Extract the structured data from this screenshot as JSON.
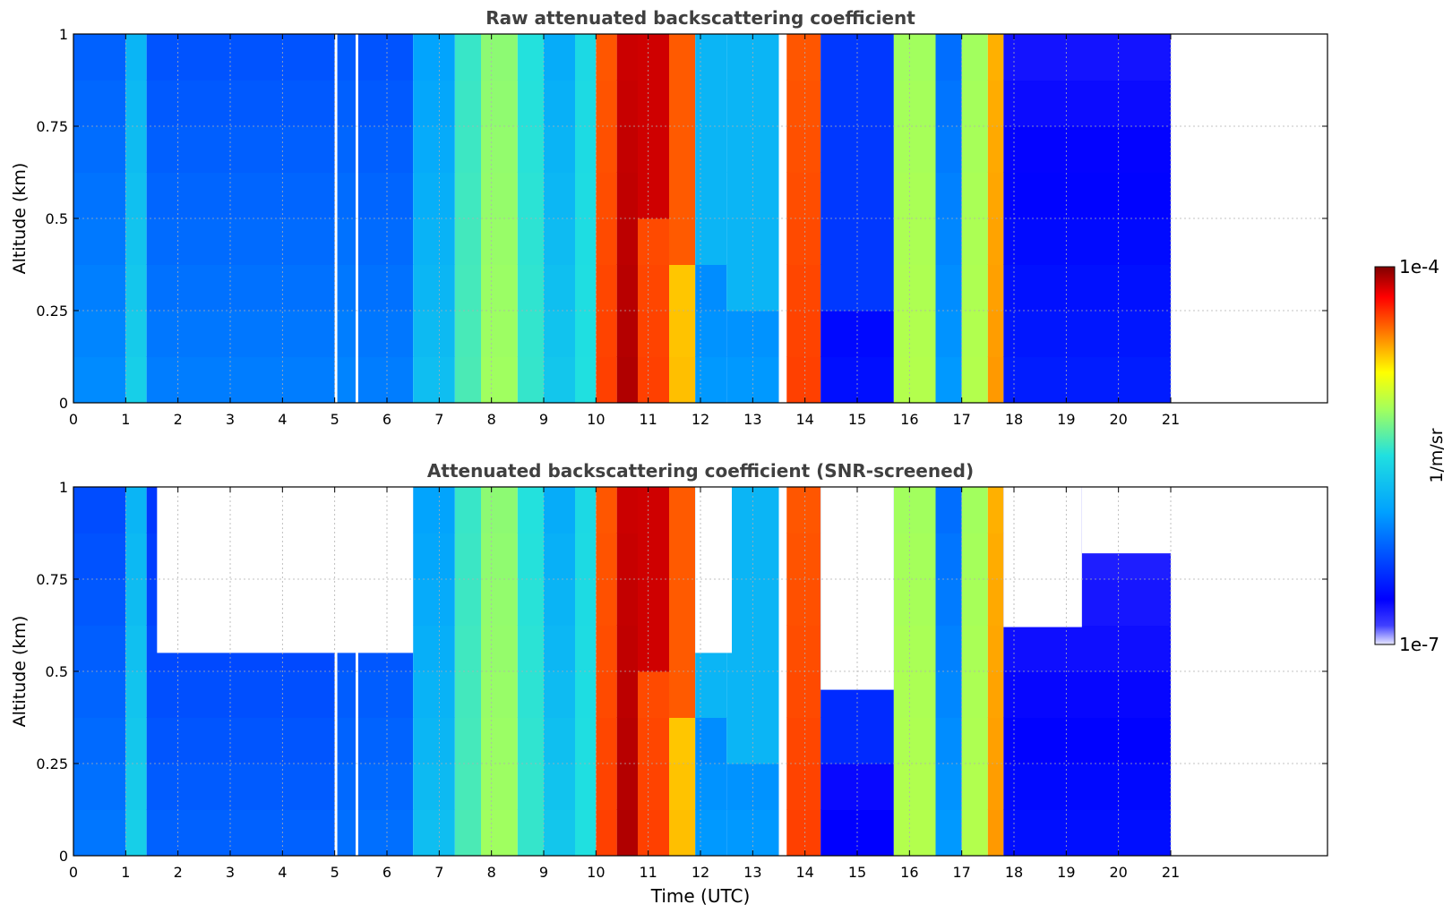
{
  "chart_data": [
    {
      "type": "heatmap",
      "title": "Raw attenuated backscattering coefficient",
      "xlabel": "",
      "ylabel": "Altitude (km)",
      "xlim": [
        0,
        24
      ],
      "ylim": [
        0,
        1
      ],
      "xticks": [
        "0",
        "1",
        "2",
        "3",
        "4",
        "5",
        "6",
        "7",
        "8",
        "9",
        "10",
        "11",
        "12",
        "13",
        "14",
        "15",
        "16",
        "17",
        "18",
        "19",
        "20",
        "21"
      ],
      "yticks": [
        "0",
        "0.25",
        "0.5",
        "0.75",
        "1"
      ],
      "data_extent_hours": [
        0,
        21
      ],
      "grid": true,
      "screened": false,
      "bands": [
        {
          "x": [
            0.0,
            1.0
          ],
          "level": 0.28,
          "cloud": 0.0
        },
        {
          "x": [
            1.0,
            1.4
          ],
          "level": 0.42,
          "cloud": 0.0
        },
        {
          "x": [
            1.4,
            5.0
          ],
          "level": 0.26,
          "cloud": 0.0
        },
        {
          "x": [
            5.0,
            5.05
          ],
          "level": -1,
          "cloud": 0.0
        },
        {
          "x": [
            5.05,
            5.4
          ],
          "level": 0.27,
          "cloud": 0.0
        },
        {
          "x": [
            5.4,
            5.45
          ],
          "level": -1,
          "cloud": 0.0
        },
        {
          "x": [
            5.45,
            6.5
          ],
          "level": 0.26,
          "cloud": 0.0
        },
        {
          "x": [
            6.5,
            7.3
          ],
          "level": 0.38,
          "cloud": 0.0
        },
        {
          "x": [
            7.3,
            7.8
          ],
          "level": 0.52,
          "cloud": 0.0
        },
        {
          "x": [
            7.8,
            8.5
          ],
          "level": 0.6,
          "cloud": 0.0
        },
        {
          "x": [
            8.5,
            9.0
          ],
          "level": 0.5,
          "cloud": 0.0
        },
        {
          "x": [
            9.0,
            9.6
          ],
          "level": 0.4,
          "cloud": 0.0
        },
        {
          "x": [
            9.6,
            10.0
          ],
          "level": 0.48,
          "cloud": 0.0
        },
        {
          "x": [
            10.0,
            10.4
          ],
          "level": 0.85,
          "cloud": 0.0
        },
        {
          "x": [
            10.4,
            10.8
          ],
          "level": 0.95,
          "cloud": 0.0
        },
        {
          "x": [
            10.8,
            11.4
          ],
          "level": 0.85,
          "cloud": 0.55
        },
        {
          "x": [
            11.4,
            11.9
          ],
          "level": 0.75,
          "cloud": 0.5
        },
        {
          "x": [
            11.9,
            12.5
          ],
          "level": 0.3,
          "cloud": 0.45
        },
        {
          "x": [
            12.5,
            13.5
          ],
          "level": 0.3,
          "cloud": 0.4
        },
        {
          "x": [
            13.5,
            13.65
          ],
          "level": -1,
          "cloud": 0.0
        },
        {
          "x": [
            13.65,
            14.3
          ],
          "level": 0.85,
          "cloud": 0.0
        },
        {
          "x": [
            14.3,
            15.7
          ],
          "level": 0.1,
          "cloud": 0.3
        },
        {
          "x": [
            15.7,
            16.5
          ],
          "level": 0.62,
          "cloud": 0.0
        },
        {
          "x": [
            16.5,
            17.0
          ],
          "level": 0.3,
          "cloud": 0.0
        },
        {
          "x": [
            17.0,
            17.5
          ],
          "level": 0.62,
          "cloud": 0.0
        },
        {
          "x": [
            17.5,
            17.8
          ],
          "level": 0.78,
          "cloud": 0.0
        },
        {
          "x": [
            17.8,
            21.0
          ],
          "level": 0.12,
          "cloud": 0.0
        }
      ]
    },
    {
      "type": "heatmap",
      "title": "Attenuated backscattering coefficient (SNR-screened)",
      "xlabel": "Time (UTC)",
      "ylabel": "Altitude (km)",
      "xlim": [
        0,
        24
      ],
      "ylim": [
        0,
        1
      ],
      "xticks": [
        "0",
        "1",
        "2",
        "3",
        "4",
        "5",
        "6",
        "7",
        "8",
        "9",
        "10",
        "11",
        "12",
        "13",
        "14",
        "15",
        "16",
        "17",
        "18",
        "19",
        "20",
        "21"
      ],
      "yticks": [
        "0",
        "0.25",
        "0.5",
        "0.75",
        "1"
      ],
      "data_extent_hours": [
        0,
        21
      ],
      "grid": true,
      "screened": true,
      "bands": [
        {
          "x": [
            0.0,
            1.0
          ],
          "level": 0.25,
          "cloud": 0.0
        },
        {
          "x": [
            1.0,
            1.4
          ],
          "level": 0.42,
          "cloud": 0.0
        },
        {
          "x": [
            1.4,
            5.0
          ],
          "level": 0.22,
          "cloud": 0.0
        },
        {
          "x": [
            5.0,
            5.05
          ],
          "level": -1,
          "cloud": 0.0
        },
        {
          "x": [
            5.05,
            5.4
          ],
          "level": 0.24,
          "cloud": 0.0
        },
        {
          "x": [
            5.4,
            5.45
          ],
          "level": -1,
          "cloud": 0.0
        },
        {
          "x": [
            5.45,
            6.5
          ],
          "level": 0.24,
          "cloud": 0.0
        },
        {
          "x": [
            6.5,
            7.3
          ],
          "level": 0.38,
          "cloud": 0.0
        },
        {
          "x": [
            7.3,
            7.8
          ],
          "level": 0.52,
          "cloud": 0.0
        },
        {
          "x": [
            7.8,
            8.5
          ],
          "level": 0.6,
          "cloud": 0.0
        },
        {
          "x": [
            8.5,
            9.0
          ],
          "level": 0.5,
          "cloud": 0.0
        },
        {
          "x": [
            9.0,
            9.6
          ],
          "level": 0.4,
          "cloud": 0.0
        },
        {
          "x": [
            9.6,
            10.0
          ],
          "level": 0.48,
          "cloud": 0.0
        },
        {
          "x": [
            10.0,
            10.4
          ],
          "level": 0.85,
          "cloud": 0.0
        },
        {
          "x": [
            10.4,
            10.8
          ],
          "level": 0.95,
          "cloud": 0.0
        },
        {
          "x": [
            10.8,
            11.4
          ],
          "level": 0.85,
          "cloud": 0.55
        },
        {
          "x": [
            11.4,
            11.9
          ],
          "level": 0.75,
          "cloud": 0.5
        },
        {
          "x": [
            11.9,
            12.5
          ],
          "level": 0.3,
          "cloud": 0.45
        },
        {
          "x": [
            12.5,
            13.5
          ],
          "level": 0.3,
          "cloud": 0.4
        },
        {
          "x": [
            13.5,
            13.65
          ],
          "level": -1,
          "cloud": 0.0
        },
        {
          "x": [
            13.65,
            14.3
          ],
          "level": 0.85,
          "cloud": 0.0
        },
        {
          "x": [
            14.3,
            15.7
          ],
          "level": 0.08,
          "cloud": 0.3
        },
        {
          "x": [
            15.7,
            16.5
          ],
          "level": 0.62,
          "cloud": 0.0
        },
        {
          "x": [
            16.5,
            17.0
          ],
          "level": 0.3,
          "cloud": 0.0
        },
        {
          "x": [
            17.0,
            17.5
          ],
          "level": 0.62,
          "cloud": 0.0
        },
        {
          "x": [
            17.5,
            17.8
          ],
          "level": 0.78,
          "cloud": 0.0
        },
        {
          "x": [
            17.8,
            21.0
          ],
          "level": 0.1,
          "cloud": 0.0
        }
      ],
      "screened_out_regions": [
        {
          "x": [
            1.6,
            6.5
          ],
          "y": [
            0.55,
            1.0
          ]
        },
        {
          "x": [
            11.9,
            12.6
          ],
          "y": [
            0.55,
            1.0
          ]
        },
        {
          "x": [
            14.3,
            15.7
          ],
          "y": [
            0.45,
            1.0
          ]
        },
        {
          "x": [
            17.8,
            19.3
          ],
          "y": [
            0.62,
            1.0
          ]
        },
        {
          "x": [
            19.3,
            21.0
          ],
          "y": [
            0.82,
            1.0
          ]
        }
      ]
    }
  ],
  "colorbar": {
    "label": "1/m/sr",
    "max_label": "1e-4",
    "min_label": "1e-7",
    "scale": "log",
    "range": [
      1e-07,
      0.0001
    ],
    "colormap": "jet"
  },
  "colors": {
    "grid": "#b0b0b0",
    "title": "#404040",
    "axis": "#000000"
  }
}
